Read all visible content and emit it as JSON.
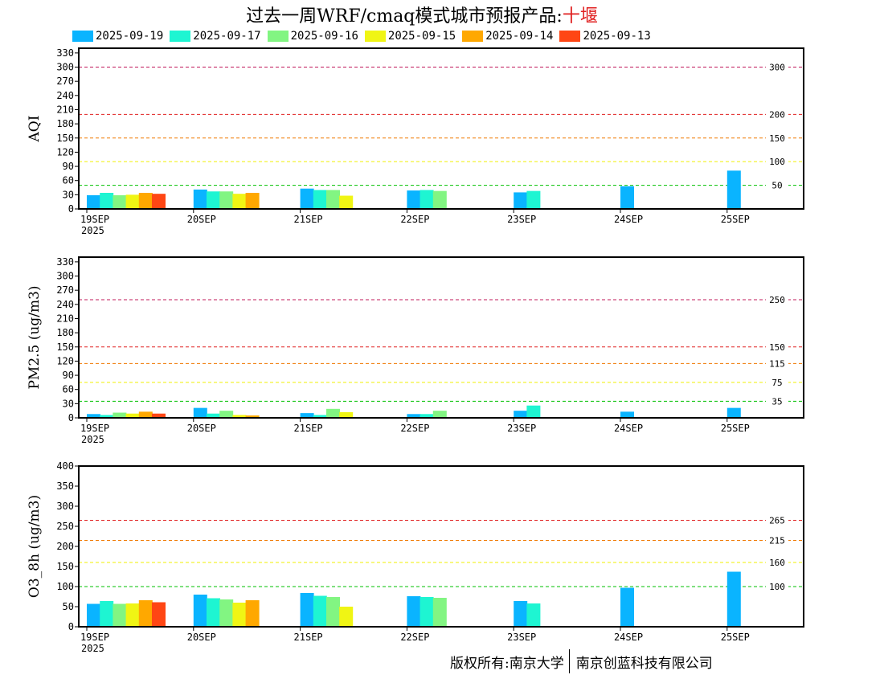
{
  "title": {
    "main": "过去一周WRF/cmaq模式城市预报产品:",
    "city": "十堰"
  },
  "footer": {
    "left": "版权所有:南京大学",
    "right": "南京创蓝科技有限公司"
  },
  "legend": [
    {
      "label": "2025-09-19",
      "color": "#0ab4ff"
    },
    {
      "label": "2025-09-17",
      "color": "#1ef5d2"
    },
    {
      "label": "2025-09-16",
      "color": "#82f582"
    },
    {
      "label": "2025-09-15",
      "color": "#f0f514"
    },
    {
      "label": "2025-09-14",
      "color": "#ffa800"
    },
    {
      "label": "2025-09-13",
      "color": "#ff4614"
    }
  ],
  "chart_data": [
    {
      "type": "bar",
      "ylabel": "AQI",
      "ylim": [
        0,
        340
      ],
      "yticks": [
        0,
        30,
        60,
        90,
        120,
        150,
        180,
        210,
        240,
        270,
        300,
        330
      ],
      "x_ticks": [
        {
          "label": "19SEP",
          "sublabel": "2025"
        },
        {
          "label": "20SEP",
          "sublabel": ""
        },
        {
          "label": "21SEP",
          "sublabel": ""
        },
        {
          "label": "22SEP",
          "sublabel": ""
        },
        {
          "label": "23SEP",
          "sublabel": ""
        },
        {
          "label": "24SEP",
          "sublabel": ""
        },
        {
          "label": "25SEP",
          "sublabel": ""
        }
      ],
      "thresholds": [
        {
          "value": 300,
          "label": "300",
          "color": "#c0185a"
        },
        {
          "value": 200,
          "label": "200",
          "color": "#e02020"
        },
        {
          "value": 150,
          "label": "150",
          "color": "#f07800"
        },
        {
          "value": 100,
          "label": "100",
          "color": "#f0f000"
        },
        {
          "value": 50,
          "label": "50",
          "color": "#00c000"
        }
      ],
      "series": [
        {
          "values": [
            29,
            41,
            43,
            39,
            35,
            48,
            81
          ]
        },
        {
          "values": [
            34,
            37,
            40,
            40,
            38,
            null,
            null
          ]
        },
        {
          "values": [
            29,
            37,
            40,
            38,
            null,
            null,
            null
          ]
        },
        {
          "values": [
            30,
            32,
            28,
            null,
            null,
            null,
            null
          ]
        },
        {
          "values": [
            34,
            34,
            null,
            null,
            null,
            null,
            null
          ]
        },
        {
          "values": [
            32,
            null,
            null,
            null,
            null,
            null,
            null
          ]
        }
      ]
    },
    {
      "type": "bar",
      "ylabel": "PM2.5 (ug/m3)",
      "ylim": [
        0,
        340
      ],
      "yticks": [
        0,
        30,
        60,
        90,
        120,
        150,
        180,
        210,
        240,
        270,
        300,
        330
      ],
      "x_ticks": [
        {
          "label": "19SEP",
          "sublabel": "2025"
        },
        {
          "label": "20SEP",
          "sublabel": ""
        },
        {
          "label": "21SEP",
          "sublabel": ""
        },
        {
          "label": "22SEP",
          "sublabel": ""
        },
        {
          "label": "23SEP",
          "sublabel": ""
        },
        {
          "label": "24SEP",
          "sublabel": ""
        },
        {
          "label": "25SEP",
          "sublabel": ""
        }
      ],
      "thresholds": [
        {
          "value": 250,
          "label": "250",
          "color": "#c0185a"
        },
        {
          "value": 150,
          "label": "150",
          "color": "#e02020"
        },
        {
          "value": 115,
          "label": "115",
          "color": "#f07800"
        },
        {
          "value": 75,
          "label": "75",
          "color": "#f0f000"
        },
        {
          "value": 35,
          "label": "35",
          "color": "#00c000"
        }
      ],
      "series": [
        {
          "values": [
            8,
            21,
            10,
            8,
            15,
            13,
            21
          ]
        },
        {
          "values": [
            6,
            9,
            6,
            8,
            26,
            null,
            null
          ]
        },
        {
          "values": [
            11,
            15,
            19,
            15,
            null,
            null,
            null
          ]
        },
        {
          "values": [
            9,
            6,
            12,
            null,
            null,
            null,
            null
          ]
        },
        {
          "values": [
            13,
            5,
            null,
            null,
            null,
            null,
            null
          ]
        },
        {
          "values": [
            9,
            null,
            null,
            null,
            null,
            null,
            null
          ]
        }
      ]
    },
    {
      "type": "bar",
      "ylabel": "O3_8h (ug/m3)",
      "ylim": [
        0,
        400
      ],
      "yticks": [
        0,
        50,
        100,
        150,
        200,
        250,
        300,
        350,
        400
      ],
      "x_ticks": [
        {
          "label": "19SEP",
          "sublabel": "2025"
        },
        {
          "label": "20SEP",
          "sublabel": ""
        },
        {
          "label": "21SEP",
          "sublabel": ""
        },
        {
          "label": "22SEP",
          "sublabel": ""
        },
        {
          "label": "23SEP",
          "sublabel": ""
        },
        {
          "label": "24SEP",
          "sublabel": ""
        },
        {
          "label": "25SEP",
          "sublabel": ""
        }
      ],
      "thresholds": [
        {
          "value": 265,
          "label": "265",
          "color": "#e02020"
        },
        {
          "value": 215,
          "label": "215",
          "color": "#f07800"
        },
        {
          "value": 160,
          "label": "160",
          "color": "#f0f000"
        },
        {
          "value": 100,
          "label": "100",
          "color": "#00c000"
        }
      ],
      "series": [
        {
          "values": [
            57,
            80,
            84,
            76,
            64,
            97,
            137
          ]
        },
        {
          "values": [
            64,
            71,
            77,
            74,
            58,
            null,
            null
          ]
        },
        {
          "values": [
            57,
            68,
            74,
            72,
            null,
            null,
            null
          ]
        },
        {
          "values": [
            58,
            60,
            50,
            null,
            null,
            null,
            null
          ]
        },
        {
          "values": [
            66,
            66,
            null,
            null,
            null,
            null,
            null
          ]
        },
        {
          "values": [
            61,
            null,
            null,
            null,
            null,
            null,
            null
          ]
        }
      ]
    }
  ]
}
